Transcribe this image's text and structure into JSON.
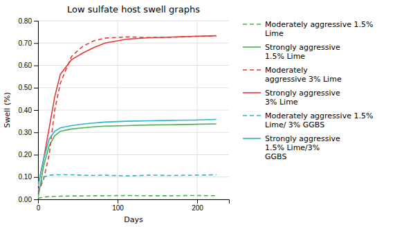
{
  "chart_data": {
    "type": "line",
    "title": "Low sulfate host swell graphs",
    "xlabel": "Days",
    "ylabel": "Swell (%)",
    "x": [
      0,
      7,
      14,
      21,
      28,
      42,
      56,
      70,
      84,
      112,
      140,
      168,
      196,
      224
    ],
    "xlim": [
      0,
      240
    ],
    "ylim": [
      0.0,
      0.8
    ],
    "xticks": [
      0,
      100,
      200
    ],
    "yticks": [
      {
        "value": 0.0,
        "label": "0.00"
      },
      {
        "value": 0.1,
        "label": "0.10"
      },
      {
        "value": 0.2,
        "label": "0.20"
      },
      {
        "value": 0.3,
        "label": "0.30"
      },
      {
        "value": 0.4,
        "label": "0.40"
      },
      {
        "value": 0.5,
        "label": "0.50"
      },
      {
        "value": 0.6,
        "label": "0.60"
      },
      {
        "value": 0.7,
        "label": "0.70"
      },
      {
        "value": 0.8,
        "label": "0.80"
      }
    ],
    "grid": true,
    "legend": "right",
    "series": [
      {
        "name": "Moderately aggressive 1.5%\nLime",
        "color": "#4CAF50",
        "line_style": "dashed",
        "values": [
          0.005,
          0.01,
          0.012,
          0.013,
          0.014,
          0.015,
          0.015,
          0.016,
          0.016,
          0.017,
          0.016,
          0.016,
          0.017,
          0.016
        ]
      },
      {
        "name": "Strongly aggressive\n1.5% Lime",
        "color": "#4CAF50",
        "line_style": "solid",
        "values": [
          0.005,
          0.15,
          0.24,
          0.285,
          0.305,
          0.315,
          0.32,
          0.325,
          0.328,
          0.33,
          0.333,
          0.334,
          0.336,
          0.338
        ]
      },
      {
        "name": "Moderately\naggressive 3% Lime",
        "color": "#E53935",
        "line_style": "dashed",
        "values": [
          0.03,
          0.09,
          0.2,
          0.4,
          0.52,
          0.64,
          0.685,
          0.71,
          0.722,
          0.728,
          0.725,
          0.726,
          0.73,
          0.732
        ]
      },
      {
        "name": "Strongly aggressive\n3% Lime",
        "color": "#E53935",
        "line_style": "solid",
        "values": [
          0.06,
          0.18,
          0.32,
          0.46,
          0.56,
          0.625,
          0.655,
          0.68,
          0.7,
          0.718,
          0.724,
          0.727,
          0.73,
          0.733
        ]
      },
      {
        "name": "Moderately aggressive 1.5%\nLime/ 3% GGBS",
        "color": "#29B6C8",
        "line_style": "dashed",
        "values": [
          0.04,
          0.1,
          0.108,
          0.11,
          0.11,
          0.11,
          0.108,
          0.107,
          0.108,
          0.105,
          0.108,
          0.107,
          0.108,
          0.11
        ]
      },
      {
        "name": "Strongly aggressive\n1.5% Lime/3%\nGGBS",
        "color": "#29B6C8",
        "line_style": "solid",
        "values": [
          0.06,
          0.18,
          0.27,
          0.305,
          0.32,
          0.33,
          0.337,
          0.342,
          0.346,
          0.35,
          0.352,
          0.354,
          0.355,
          0.358
        ]
      }
    ]
  }
}
